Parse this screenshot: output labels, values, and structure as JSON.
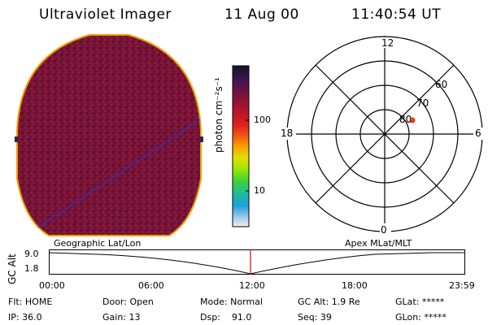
{
  "header": {
    "title": "Ultraviolet Imager",
    "date": "11 Aug 00",
    "time": "11:40:54 UT"
  },
  "colorbar": {
    "unit_label": "photon cm⁻²s⁻¹",
    "ticks": [
      "100",
      "10"
    ],
    "colors": [
      "#141428",
      "#3c1450",
      "#78143c",
      "#b4142d",
      "#dc1e1e",
      "#f05a14",
      "#f5a000",
      "#e6dc00",
      "#a0e600",
      "#3cd23c",
      "#1eb9a0",
      "#1ea0dc",
      "#a0c8e6",
      "#f0f0f0"
    ]
  },
  "polar_plot": {
    "mlt_labels": {
      "top": "12",
      "left": "18",
      "right": "6",
      "bottom": "0"
    },
    "lat_labels": [
      "60",
      "70",
      "80"
    ],
    "marker_color": "#e63c00"
  },
  "timeline": {
    "ylabel": "GC Alt",
    "yticks": [
      "9.0",
      "1.8"
    ],
    "left_caption": "Geographic Lat/Lon",
    "right_caption": "Apex MLat/MLT",
    "xticks": [
      "00:00",
      "06:00",
      "12:00",
      "18:00",
      "23:59"
    ],
    "marker_color": "#e60000"
  },
  "status": {
    "flt": "Flt: HOME",
    "ip": "IP: 36.0",
    "door": "Door: Open",
    "gain": "Gain: 13",
    "mode": "Mode: Normal",
    "dsp": "Dsp:    91.0",
    "gc_alt": "GC Alt: 1.9 Re",
    "seq": "Seq: 39",
    "glat": "GLat: *****",
    "glon": "GLon: *****"
  }
}
